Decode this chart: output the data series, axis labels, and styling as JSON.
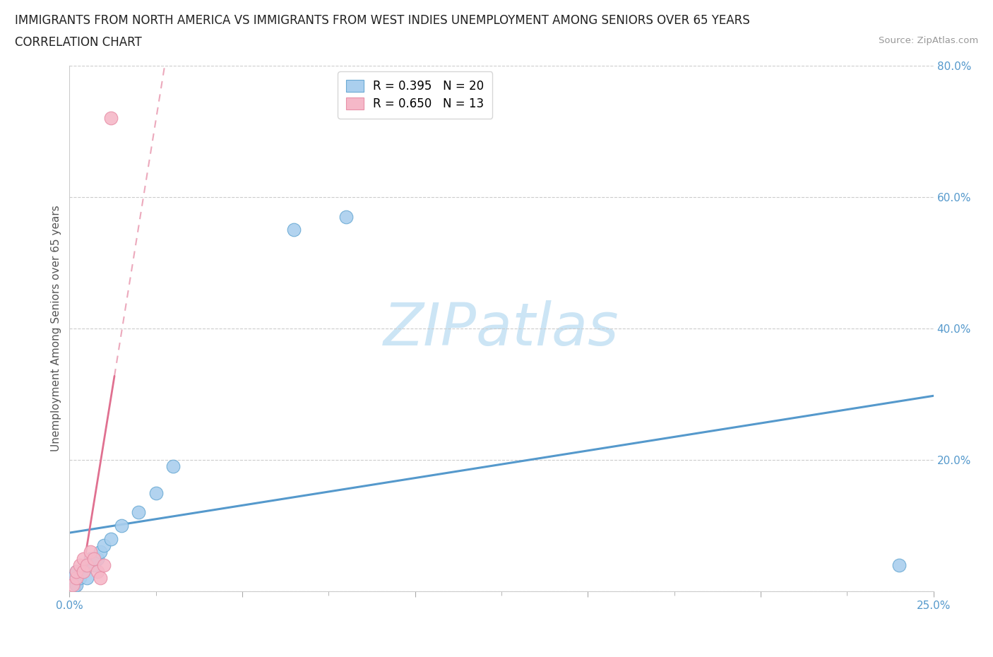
{
  "title_line1": "IMMIGRANTS FROM NORTH AMERICA VS IMMIGRANTS FROM WEST INDIES UNEMPLOYMENT AMONG SENIORS OVER 65 YEARS",
  "title_line2": "CORRELATION CHART",
  "source": "Source: ZipAtlas.com",
  "ylabel": "Unemployment Among Seniors over 65 years",
  "xlim": [
    0.0,
    0.25
  ],
  "ylim": [
    0.0,
    0.8
  ],
  "xticks": [
    0.0,
    0.05,
    0.1,
    0.15,
    0.2,
    0.25
  ],
  "yticks": [
    0.0,
    0.2,
    0.4,
    0.6,
    0.8
  ],
  "xtick_labels": [
    "0.0%",
    "",
    "",
    "",
    "",
    "25.0%"
  ],
  "ytick_labels_right": [
    "",
    "20.0%",
    "40.0%",
    "60.0%",
    "80.0%"
  ],
  "north_america_x": [
    0.001,
    0.002,
    0.002,
    0.003,
    0.004,
    0.005,
    0.005,
    0.006,
    0.007,
    0.008,
    0.009,
    0.01,
    0.012,
    0.015,
    0.02,
    0.025,
    0.03,
    0.065,
    0.08,
    0.24
  ],
  "north_america_y": [
    0.02,
    0.01,
    0.03,
    0.02,
    0.03,
    0.04,
    0.02,
    0.05,
    0.04,
    0.05,
    0.06,
    0.07,
    0.08,
    0.1,
    0.12,
    0.15,
    0.19,
    0.55,
    0.57,
    0.04
  ],
  "west_indies_x": [
    0.001,
    0.002,
    0.002,
    0.003,
    0.004,
    0.004,
    0.005,
    0.006,
    0.007,
    0.008,
    0.009,
    0.01,
    0.012
  ],
  "west_indies_y": [
    0.01,
    0.02,
    0.03,
    0.04,
    0.03,
    0.05,
    0.04,
    0.06,
    0.05,
    0.03,
    0.02,
    0.04,
    0.72
  ],
  "R_north_america": 0.395,
  "N_north_america": 20,
  "R_west_indies": 0.65,
  "N_west_indies": 13,
  "color_north_america": "#aacfee",
  "color_west_indies": "#f5b8c8",
  "edge_color_north_america": "#6aaad4",
  "edge_color_west_indies": "#e890a8",
  "line_color_north_america": "#5599cc",
  "line_color_west_indies": "#e07090",
  "watermark_color": "#cce5f5",
  "background_color": "#ffffff",
  "title_fontsize": 12,
  "axis_label_fontsize": 11,
  "tick_fontsize": 11,
  "legend_fontsize": 12
}
